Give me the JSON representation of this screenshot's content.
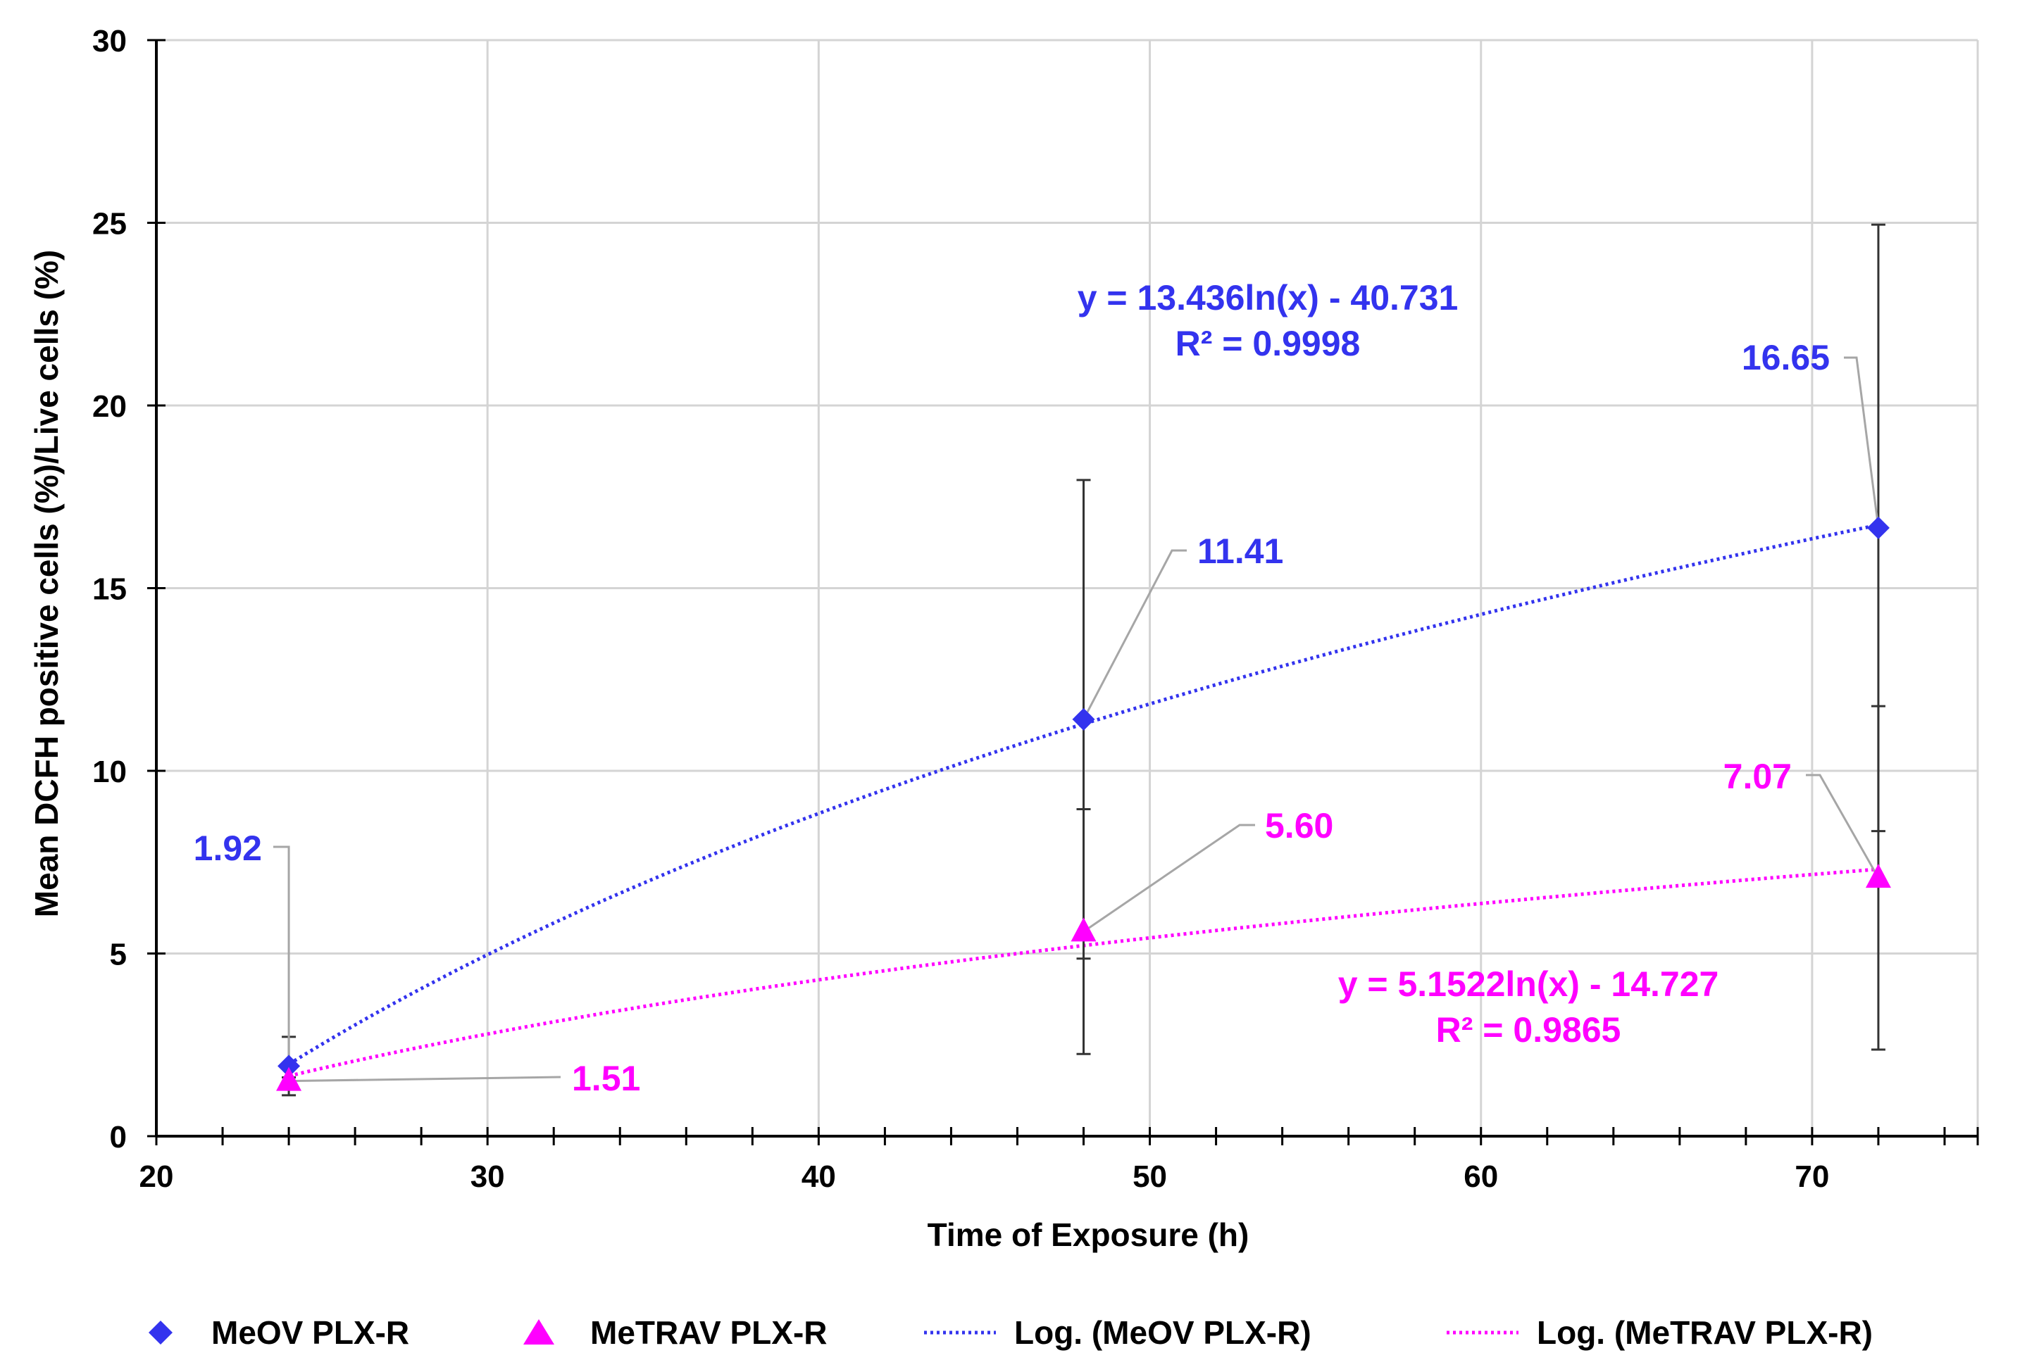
{
  "colors": {
    "meov": "#3333ee",
    "metrav": "#ff00ff",
    "grid": "#d4d4d4",
    "axis": "#000000",
    "errorbar": "#333333",
    "leader": "#a6a6a6"
  },
  "chart_data": {
    "type": "scatter",
    "title": "",
    "xlabel": "Time of Exposure (h)",
    "ylabel": "Mean DCFH positive cells (%)/Live  cells (%)",
    "xlim": [
      20,
      75
    ],
    "ylim": [
      0,
      30
    ],
    "x_major_ticks": [
      20,
      30,
      40,
      50,
      60,
      70
    ],
    "x_minor_step": 2,
    "y_ticks": [
      0,
      5,
      10,
      15,
      20,
      25,
      30
    ],
    "grid": true,
    "legend_position": "bottom",
    "series": [
      {
        "name": "MeOV PLX-R",
        "marker": "diamond",
        "color": "#3333ee",
        "x": [
          24,
          48,
          72
        ],
        "y": [
          1.92,
          11.41,
          16.65
        ],
        "labels": [
          "1.92",
          "11.41",
          "16.65"
        ],
        "error": [
          0.8,
          6.55,
          8.3
        ]
      },
      {
        "name": "MeTRAV PLX-R",
        "marker": "triangle",
        "color": "#ff00ff",
        "x": [
          24,
          48,
          72
        ],
        "y": [
          1.51,
          5.6,
          7.07
        ],
        "labels": [
          "1.51",
          "5.60",
          "7.07"
        ],
        "error": [
          0.1,
          3.35,
          4.7
        ]
      }
    ],
    "trendlines": [
      {
        "name": "Log. (MeOV PLX-R)",
        "type": "logarithmic",
        "a": 13.436,
        "b": -40.731,
        "x_range": [
          24,
          72
        ],
        "color": "#3333ee",
        "equation": "y = 13.436ln(x) - 40.731",
        "r2": "R² = 0.9998"
      },
      {
        "name": "Log. (MeTRAV PLX-R)",
        "type": "logarithmic",
        "a": 5.1522,
        "b": -14.727,
        "x_range": [
          24,
          72
        ],
        "color": "#ff00ff",
        "equation": "y = 5.1522ln(x) - 14.727",
        "r2": "R² = 0.9865"
      }
    ]
  },
  "legend": {
    "items": [
      {
        "label": "MeOV PLX-R",
        "kind": "diamond",
        "color": "#3333ee"
      },
      {
        "label": "MeTRAV PLX-R",
        "kind": "triangle",
        "color": "#ff00ff"
      },
      {
        "label": "Log. (MeOV PLX-R)",
        "kind": "dotted-line",
        "color": "#3333ee"
      },
      {
        "label": "Log. (MeTRAV PLX-R)",
        "kind": "dotted-line",
        "color": "#ff00ff"
      }
    ]
  }
}
